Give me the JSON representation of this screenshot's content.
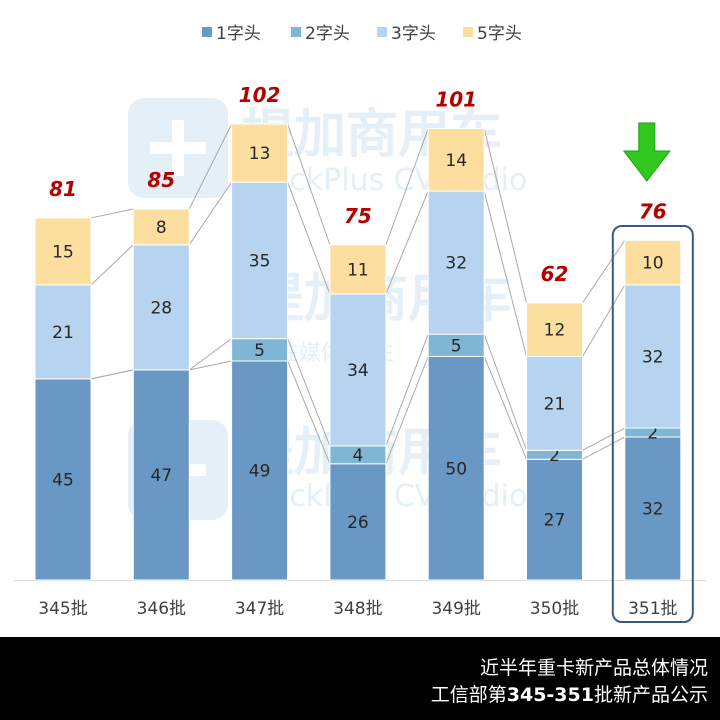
{
  "colors": {
    "s1": "#6a98c4",
    "s2": "#7fb6d3",
    "s3": "#b6d3ef",
    "s5": "#fcdf9f",
    "total_label": "#b50000",
    "highlight_box": "#3a5a83",
    "arrow": "#2fc81f",
    "connector": "#a9a9a9",
    "watermark": "#cfe3f1",
    "footer_bg": "#000000",
    "footer_text": "#ffffff"
  },
  "watermark": {
    "cn": "提加商用车",
    "en": "TruckPlus CVstudio",
    "extra_cn": "专注媒体 专注"
  },
  "chart_data": {
    "type": "bar",
    "stacked": true,
    "categories": [
      "345批",
      "346批",
      "347批",
      "348批",
      "349批",
      "350批",
      "351批"
    ],
    "series": [
      {
        "name": "1字头",
        "values": [
          45,
          47,
          49,
          26,
          50,
          27,
          32
        ]
      },
      {
        "name": "2字头",
        "values": [
          0,
          0,
          5,
          4,
          5,
          2,
          2
        ]
      },
      {
        "name": "3字头",
        "values": [
          21,
          28,
          35,
          34,
          32,
          21,
          32
        ]
      },
      {
        "name": "5字头",
        "values": [
          15,
          8,
          13,
          11,
          14,
          12,
          10
        ]
      }
    ],
    "totals": [
      81,
      85,
      102,
      75,
      101,
      62,
      76
    ],
    "legend_position": "top",
    "grid": false,
    "connector_lines": true,
    "highlighted_category": "351批",
    "highlight_marker": "down-arrow"
  },
  "footer": {
    "line1": "近半年重卡新产品总体情况",
    "line2_prefix": "工信部第",
    "line2_range": "345-351",
    "line2_suffix": "批新产品公示"
  }
}
